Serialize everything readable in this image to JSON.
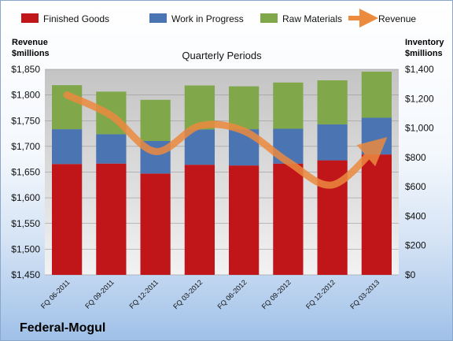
{
  "brand": "Federal-Mogul",
  "chart_data": {
    "type": "bar",
    "subtitle": "Quarterly Periods",
    "left_axis_label": [
      "Revenue",
      "$millions"
    ],
    "right_axis_label": [
      "Inventory",
      "$millions"
    ],
    "categories": [
      "FQ 06-2011",
      "FQ 09-2011",
      "FQ 12-2011",
      "FQ 03-2012",
      "FQ 06-2012",
      "FQ 09-2012",
      "FQ 12-2012",
      "FQ 03-2013"
    ],
    "stacked": true,
    "series": [
      {
        "name": "Finished Goods",
        "color": "#c0161a",
        "values": [
          755,
          758,
          690,
          750,
          745,
          758,
          780,
          820
        ]
      },
      {
        "name": "Work in Progress",
        "color": "#4a74b2",
        "values": [
          237,
          200,
          222,
          240,
          247,
          237,
          245,
          250
        ]
      },
      {
        "name": "Raw Materials",
        "color": "#80a84a",
        "values": [
          300,
          290,
          280,
          300,
          292,
          315,
          300,
          314
        ]
      }
    ],
    "line_series": {
      "name": "Revenue",
      "color": "#ec8a3e",
      "values": [
        1800,
        1760,
        1690,
        1740,
        1730,
        1670,
        1625,
        1700
      ],
      "axis": "left"
    },
    "left_axis": {
      "min": 1450,
      "max": 1850,
      "ticks": [
        "$1,450",
        "$1,500",
        "$1,550",
        "$1,600",
        "$1,650",
        "$1,700",
        "$1,750",
        "$1,800",
        "$1,850"
      ]
    },
    "right_axis": {
      "min": 0,
      "max": 1400,
      "ticks": [
        "$0",
        "$200",
        "$400",
        "$600",
        "$800",
        "$1,000",
        "$1,200",
        "$1,400"
      ]
    },
    "legend_position": "top",
    "grid": true
  }
}
